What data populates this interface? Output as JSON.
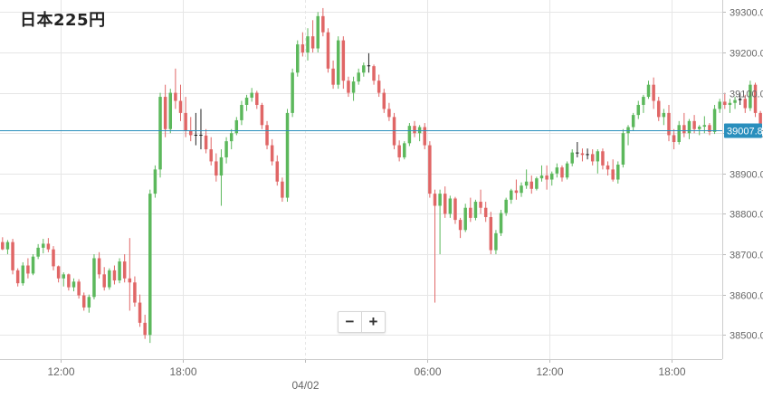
{
  "title": "日本225円",
  "zoom": {
    "minus": "−",
    "plus": "+"
  },
  "colors": {
    "up": "#5cb85c",
    "down": "#e06666",
    "doji": "#222222",
    "current_line": "#2a8fbd",
    "current_tag": "#2a8fbd",
    "grid": "#e6e6e6",
    "axis_text": "#666666"
  },
  "chart_data": {
    "type": "candlestick",
    "title": "日本225円",
    "ylim": [
      38440,
      39330
    ],
    "y_ticks": [
      38500,
      38600,
      38700,
      38800,
      38900,
      39000,
      39100,
      39200,
      39300
    ],
    "y_tick_labels": [
      "38500.0",
      "38600.0",
      "38700.0",
      "38800.0",
      "38900.0",
      "39000.0",
      "39100.0",
      "39200.0",
      "39300.0"
    ],
    "x_tick_labels": [
      "12:00",
      "18:00",
      "04/02",
      "06:00",
      "12:00",
      "18:00"
    ],
    "x_tick_hours": [
      12,
      18,
      24,
      30,
      36,
      42
    ],
    "x_range_hours": [
      9,
      44.5
    ],
    "candle_interval_hours": 0.25,
    "current_price": 39007.8,
    "current_price_label": "39007.8",
    "ohlc": [
      [
        38730,
        38742,
        38710,
        38712
      ],
      [
        38712,
        38735,
        38700,
        38730
      ],
      [
        38730,
        38738,
        38650,
        38660
      ],
      [
        38660,
        38665,
        38620,
        38628
      ],
      [
        38628,
        38680,
        38622,
        38672
      ],
      [
        38672,
        38690,
        38640,
        38652
      ],
      [
        38652,
        38700,
        38648,
        38694
      ],
      [
        38694,
        38725,
        38688,
        38716
      ],
      [
        38716,
        38738,
        38702,
        38726
      ],
      [
        38726,
        38740,
        38705,
        38712
      ],
      [
        38712,
        38720,
        38660,
        38670
      ],
      [
        38670,
        38672,
        38630,
        38640
      ],
      [
        38640,
        38655,
        38620,
        38650
      ],
      [
        38650,
        38652,
        38610,
        38618
      ],
      [
        38618,
        38640,
        38608,
        38632
      ],
      [
        38632,
        38638,
        38590,
        38598
      ],
      [
        38598,
        38605,
        38560,
        38568
      ],
      [
        38568,
        38600,
        38555,
        38594
      ],
      [
        38594,
        38700,
        38588,
        38690
      ],
      [
        38690,
        38705,
        38640,
        38650
      ],
      [
        38650,
        38668,
        38610,
        38618
      ],
      [
        38618,
        38665,
        38612,
        38660
      ],
      [
        38660,
        38672,
        38625,
        38635
      ],
      [
        38635,
        38690,
        38628,
        38682
      ],
      [
        38682,
        38700,
        38630,
        38640
      ],
      [
        38640,
        38740,
        38560,
        38630
      ],
      [
        38630,
        38645,
        38570,
        38580
      ],
      [
        38580,
        38600,
        38520,
        38530
      ],
      [
        38530,
        38550,
        38490,
        38500
      ],
      [
        38500,
        38860,
        38480,
        38850
      ],
      [
        38850,
        38920,
        38840,
        38910
      ],
      [
        38910,
        39100,
        38890,
        39090
      ],
      [
        39090,
        39120,
        38990,
        39010
      ],
      [
        39010,
        39110,
        39000,
        39100
      ],
      [
        39100,
        39160,
        39060,
        39080
      ],
      [
        39080,
        39120,
        39030,
        39050
      ],
      [
        39050,
        39090,
        38990,
        39005
      ],
      [
        39005,
        39040,
        38980,
        38995
      ],
      [
        38995,
        39050,
        38970,
        38996
      ],
      [
        38996,
        39060,
        38960,
        38994
      ],
      [
        38994,
        39010,
        38950,
        38960
      ],
      [
        38960,
        38990,
        38920,
        38930
      ],
      [
        38930,
        38950,
        38880,
        38895
      ],
      [
        38895,
        38960,
        38820,
        38940
      ],
      [
        38940,
        38990,
        38925,
        38980
      ],
      [
        38980,
        39010,
        38960,
        39000
      ],
      [
        39000,
        39040,
        38995,
        39032
      ],
      [
        39032,
        39080,
        39020,
        39070
      ],
      [
        39070,
        39095,
        39055,
        39088
      ],
      [
        39088,
        39112,
        39078,
        39100
      ],
      [
        39100,
        39105,
        39060,
        39070
      ],
      [
        39070,
        39075,
        39010,
        39020
      ],
      [
        39020,
        39030,
        38960,
        38970
      ],
      [
        38970,
        38985,
        38920,
        38930
      ],
      [
        38930,
        38945,
        38870,
        38880
      ],
      [
        38880,
        38890,
        38830,
        38840
      ],
      [
        38840,
        39060,
        38830,
        39050
      ],
      [
        39050,
        39160,
        39040,
        39150
      ],
      [
        39150,
        39230,
        39140,
        39220
      ],
      [
        39220,
        39250,
        39190,
        39200
      ],
      [
        39200,
        39260,
        39180,
        39240
      ],
      [
        39240,
        39280,
        39200,
        39210
      ],
      [
        39210,
        39300,
        39200,
        39290
      ],
      [
        39290,
        39310,
        39240,
        39250
      ],
      [
        39250,
        39260,
        39150,
        39160
      ],
      [
        39160,
        39180,
        39110,
        39120
      ],
      [
        39120,
        39240,
        39110,
        39230
      ],
      [
        39230,
        39240,
        39110,
        39130
      ],
      [
        39130,
        39140,
        39090,
        39100
      ],
      [
        39100,
        39140,
        39080,
        39128
      ],
      [
        39128,
        39160,
        39120,
        39150
      ],
      [
        39150,
        39175,
        39140,
        39168
      ],
      [
        39168,
        39198,
        39150,
        39166
      ],
      [
        39166,
        39170,
        39120,
        39130
      ],
      [
        39130,
        39145,
        39090,
        39100
      ],
      [
        39100,
        39110,
        39050,
        39060
      ],
      [
        39060,
        39075,
        39030,
        39040
      ],
      [
        39040,
        39050,
        38960,
        38970
      ],
      [
        38970,
        38982,
        38930,
        38940
      ],
      [
        38940,
        38980,
        38935,
        38975
      ],
      [
        38975,
        39025,
        38968,
        39018
      ],
      [
        39018,
        39030,
        38990,
        39000
      ],
      [
        39000,
        39020,
        38980,
        39015
      ],
      [
        39015,
        39025,
        38960,
        38970
      ],
      [
        38970,
        38980,
        38840,
        38850
      ],
      [
        38850,
        38860,
        38580,
        38820
      ],
      [
        38820,
        38860,
        38700,
        38850
      ],
      [
        38850,
        38868,
        38790,
        38800
      ],
      [
        38800,
        38845,
        38790,
        38838
      ],
      [
        38838,
        38842,
        38775,
        38785
      ],
      [
        38785,
        38790,
        38740,
        38760
      ],
      [
        38760,
        38825,
        38755,
        38815
      ],
      [
        38815,
        38840,
        38780,
        38790
      ],
      [
        38790,
        38835,
        38784,
        38830
      ],
      [
        38830,
        38860,
        38800,
        38815
      ],
      [
        38815,
        38830,
        38780,
        38792
      ],
      [
        38792,
        38805,
        38700,
        38710
      ],
      [
        38710,
        38760,
        38700,
        38752
      ],
      [
        38752,
        38810,
        38745,
        38802
      ],
      [
        38802,
        38840,
        38795,
        38835
      ],
      [
        38835,
        38862,
        38825,
        38858
      ],
      [
        38858,
        38885,
        38835,
        38852
      ],
      [
        38852,
        38878,
        38842,
        38870
      ],
      [
        38870,
        38910,
        38862,
        38880
      ],
      [
        38880,
        38895,
        38850,
        38862
      ],
      [
        38862,
        38892,
        38858,
        38888
      ],
      [
        38888,
        38920,
        38880,
        38895
      ],
      [
        38895,
        38920,
        38860,
        38885
      ],
      [
        38885,
        38905,
        38870,
        38900
      ],
      [
        38900,
        38925,
        38890,
        38915
      ],
      [
        38915,
        38920,
        38880,
        38890
      ],
      [
        38890,
        38930,
        38885,
        38925
      ],
      [
        38925,
        38960,
        38918,
        38952
      ],
      [
        38952,
        38978,
        38940,
        38950
      ],
      [
        38950,
        38962,
        38930,
        38946
      ],
      [
        38946,
        38962,
        38935,
        38948
      ],
      [
        38948,
        38960,
        38920,
        38930
      ],
      [
        38930,
        38960,
        38900,
        38955
      ],
      [
        38955,
        38962,
        38910,
        38920
      ],
      [
        38920,
        38930,
        38895,
        38910
      ],
      [
        38910,
        38935,
        38880,
        38885
      ],
      [
        38885,
        38930,
        38875,
        38922
      ],
      [
        38922,
        39010,
        38915,
        39000
      ],
      [
        39000,
        39020,
        38970,
        39015
      ],
      [
        39015,
        39050,
        39005,
        39045
      ],
      [
        39045,
        39080,
        39035,
        39070
      ],
      [
        39070,
        39095,
        39050,
        39090
      ],
      [
        39090,
        39130,
        39085,
        39120
      ],
      [
        39120,
        39138,
        39060,
        39080
      ],
      [
        39080,
        39090,
        39030,
        39040
      ],
      [
        39040,
        39060,
        39020,
        39050
      ],
      [
        39050,
        39070,
        38980,
        38995
      ],
      [
        38995,
        39010,
        38960,
        38978
      ],
      [
        38978,
        39030,
        38972,
        39020
      ],
      [
        39020,
        39050,
        38990,
        39000
      ],
      [
        39000,
        39035,
        38985,
        39030
      ],
      [
        39030,
        39045,
        39000,
        39010
      ],
      [
        39010,
        39020,
        38995,
        39016
      ],
      [
        39016,
        39042,
        39000,
        39020
      ],
      [
        39020,
        39025,
        38995,
        39003
      ],
      [
        39003,
        39070,
        38998,
        39060
      ],
      [
        39060,
        39085,
        39050,
        39078
      ],
      [
        39078,
        39100,
        39060,
        39070
      ],
      [
        39070,
        39085,
        39050,
        39075
      ],
      [
        39075,
        39090,
        39060,
        39082
      ],
      [
        39082,
        39100,
        39070,
        39085
      ],
      [
        39085,
        39095,
        39050,
        39062
      ],
      [
        39062,
        39130,
        39055,
        39120
      ],
      [
        39120,
        39125,
        39040,
        39050
      ],
      [
        39050,
        39055,
        39000,
        39010
      ]
    ]
  }
}
